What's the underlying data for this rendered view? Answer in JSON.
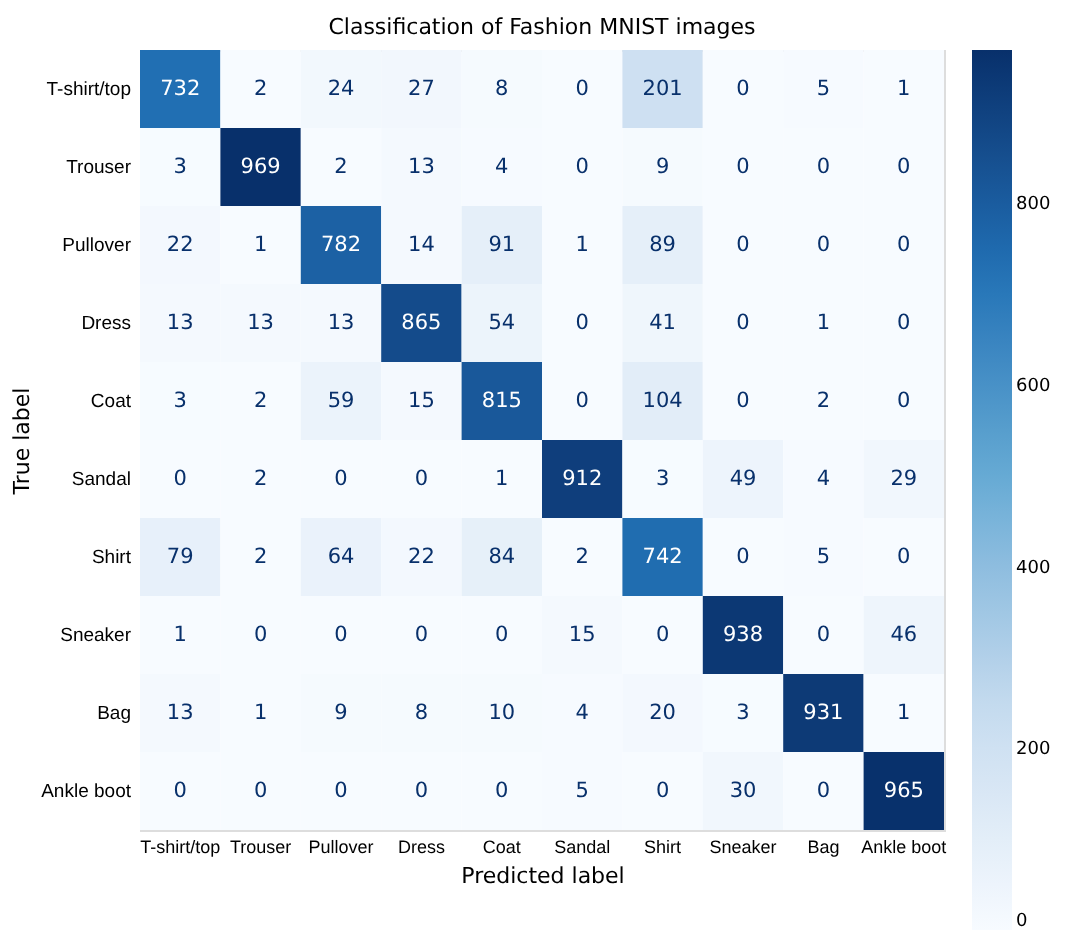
{
  "chart_data": {
    "type": "heatmap",
    "title": "Classification of Fashion MNIST images",
    "xlabel": "Predicted label",
    "ylabel": "True label",
    "categories": [
      "T-shirt/top",
      "Trouser",
      "Pullover",
      "Dress",
      "Coat",
      "Sandal",
      "Shirt",
      "Sneaker",
      "Bag",
      "Ankle boot"
    ],
    "y_categories": [
      "T-shirt/top",
      "Trouser",
      "Pullover",
      "Dress",
      "Coat",
      "Sandal",
      "Shirt",
      "Sneaker",
      "Bag",
      "Ankle boot"
    ],
    "cells": [
      [
        732,
        2,
        24,
        27,
        8,
        0,
        201,
        0,
        5,
        1
      ],
      [
        3,
        969,
        2,
        13,
        4,
        0,
        9,
        0,
        0,
        0
      ],
      [
        22,
        1,
        782,
        14,
        91,
        1,
        89,
        0,
        0,
        0
      ],
      [
        13,
        13,
        13,
        865,
        54,
        0,
        41,
        0,
        1,
        0
      ],
      [
        3,
        2,
        59,
        15,
        815,
        0,
        104,
        0,
        2,
        0
      ],
      [
        0,
        2,
        0,
        0,
        1,
        912,
        3,
        49,
        4,
        29
      ],
      [
        79,
        2,
        64,
        22,
        84,
        2,
        742,
        0,
        5,
        0
      ],
      [
        1,
        0,
        0,
        0,
        0,
        15,
        0,
        938,
        0,
        46
      ],
      [
        13,
        1,
        9,
        8,
        10,
        4,
        20,
        3,
        931,
        1
      ],
      [
        0,
        0,
        0,
        0,
        0,
        5,
        0,
        30,
        0,
        965
      ]
    ],
    "clim": [
      0,
      969
    ],
    "cticks": [
      0,
      200,
      400,
      600,
      800
    ],
    "data_labels": true,
    "grid": false
  }
}
